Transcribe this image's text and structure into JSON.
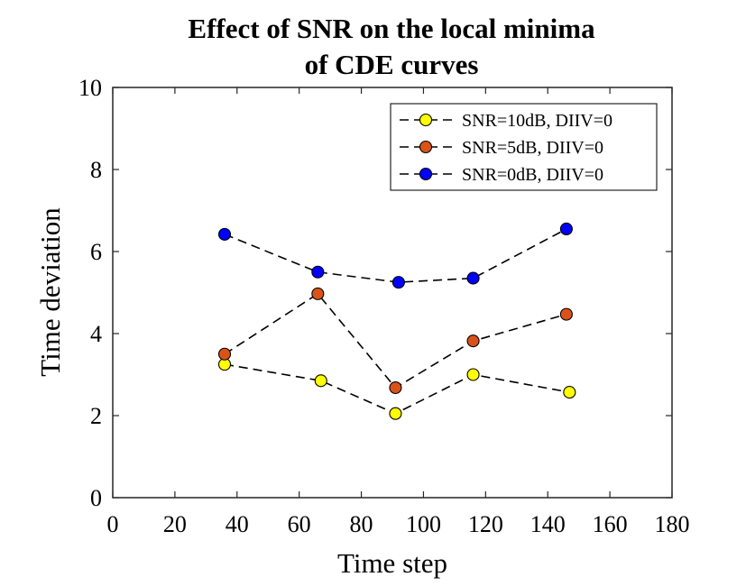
{
  "chart_data": {
    "type": "line",
    "title": "Effect of SNR on the local minima of CDE curves",
    "title_lines": [
      "Effect of SNR on the local minima",
      "of CDE curves"
    ],
    "xlabel": "Time step",
    "ylabel": "Time deviation",
    "xlim": [
      0,
      180
    ],
    "ylim": [
      0,
      10
    ],
    "x_ticks": [
      "0",
      "20",
      "40",
      "60",
      "80",
      "100",
      "120",
      "140",
      "160",
      "180"
    ],
    "y_ticks": [
      "0",
      "2",
      "4",
      "6",
      "8",
      "10"
    ],
    "grid": false,
    "legend_position": "top-right",
    "series": [
      {
        "name": "SNR=10dB, DIIV=0",
        "color": "#FFFF00",
        "line_style": "dashed",
        "marker": "circle",
        "x": [
          36,
          67,
          91,
          116,
          147
        ],
        "y": [
          3.25,
          2.85,
          2.05,
          3.0,
          2.57
        ]
      },
      {
        "name": "SNR=5dB, DIIV=0",
        "color": "#D95319",
        "line_style": "dashed",
        "marker": "circle",
        "x": [
          36,
          66,
          91,
          116,
          146
        ],
        "y": [
          3.5,
          4.97,
          2.68,
          3.82,
          4.47
        ]
      },
      {
        "name": "SNR=0dB, DIIV=0",
        "color": "#0000FF",
        "line_style": "dashed",
        "marker": "circle",
        "x": [
          36,
          66,
          92,
          116,
          146
        ],
        "y": [
          6.42,
          5.5,
          5.25,
          5.35,
          6.55
        ]
      }
    ]
  }
}
